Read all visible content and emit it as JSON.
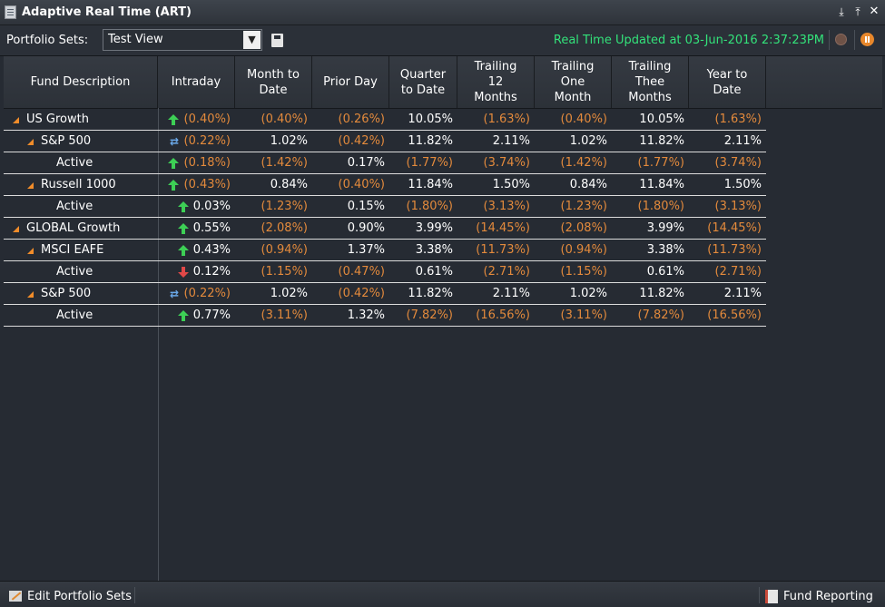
{
  "window": {
    "title": "Adaptive Real Time (ART)"
  },
  "toolbar": {
    "portfolio_sets_label": "Portfolio Sets:",
    "selected_set": "Test View",
    "status": "Real Time Updated at 03-Jun-2016 2:37:23PM"
  },
  "columns": [
    "Fund Description",
    "Intraday",
    "Month to Date",
    "Prior Day",
    "Quarter to Date",
    "Trailing 12 Months",
    "Trailing One Month",
    "Trailing Thee Months",
    "Year to Date"
  ],
  "rows": [
    {
      "name": "US Growth",
      "level": 0,
      "expandable": true,
      "indicator": "up",
      "values": [
        "(0.40%)",
        "(0.40%)",
        "(0.26%)",
        "10.05%",
        "(1.63%)",
        "(0.40%)",
        "10.05%",
        "(1.63%)"
      ]
    },
    {
      "name": "S&P 500",
      "level": 1,
      "expandable": true,
      "indicator": "refresh",
      "values": [
        "(0.22%)",
        "1.02%",
        "(0.42%)",
        "11.82%",
        "2.11%",
        "1.02%",
        "11.82%",
        "2.11%"
      ]
    },
    {
      "name": "Active",
      "level": 2,
      "expandable": false,
      "indicator": "up",
      "values": [
        "(0.18%)",
        "(1.42%)",
        "0.17%",
        "(1.77%)",
        "(3.74%)",
        "(1.42%)",
        "(1.77%)",
        "(3.74%)"
      ]
    },
    {
      "name": "Russell 1000",
      "level": 1,
      "expandable": true,
      "indicator": "up",
      "values": [
        "(0.43%)",
        "0.84%",
        "(0.40%)",
        "11.84%",
        "1.50%",
        "0.84%",
        "11.84%",
        "1.50%"
      ]
    },
    {
      "name": "Active",
      "level": 2,
      "expandable": false,
      "indicator": "up",
      "values": [
        "0.03%",
        "(1.23%)",
        "0.15%",
        "(1.80%)",
        "(3.13%)",
        "(1.23%)",
        "(1.80%)",
        "(3.13%)"
      ]
    },
    {
      "name": "GLOBAL Growth",
      "level": 0,
      "expandable": true,
      "indicator": "up",
      "values": [
        "0.55%",
        "(2.08%)",
        "0.90%",
        "3.99%",
        "(14.45%)",
        "(2.08%)",
        "3.99%",
        "(14.45%)"
      ]
    },
    {
      "name": "MSCI EAFE",
      "level": 1,
      "expandable": true,
      "indicator": "up",
      "values": [
        "0.43%",
        "(0.94%)",
        "1.37%",
        "3.38%",
        "(11.73%)",
        "(0.94%)",
        "3.38%",
        "(11.73%)"
      ]
    },
    {
      "name": "Active",
      "level": 2,
      "expandable": false,
      "indicator": "down",
      "values": [
        "0.12%",
        "(1.15%)",
        "(0.47%)",
        "0.61%",
        "(2.71%)",
        "(1.15%)",
        "0.61%",
        "(2.71%)"
      ]
    },
    {
      "name": "S&P 500",
      "level": 1,
      "expandable": true,
      "indicator": "refresh",
      "values": [
        "(0.22%)",
        "1.02%",
        "(0.42%)",
        "11.82%",
        "2.11%",
        "1.02%",
        "11.82%",
        "2.11%"
      ]
    },
    {
      "name": "Active",
      "level": 2,
      "expandable": false,
      "indicator": "up",
      "values": [
        "0.77%",
        "(3.11%)",
        "1.32%",
        "(7.82%)",
        "(16.56%)",
        "(3.11%)",
        "(7.82%)",
        "(16.56%)"
      ]
    }
  ],
  "footer": {
    "edit_label": "Edit Portfolio Sets",
    "report_label": "Fund Reporting"
  },
  "colors": {
    "negative": "#e38a3c",
    "positive": "#ffffff",
    "status": "#33e27a",
    "accent": "#f08c2a"
  }
}
